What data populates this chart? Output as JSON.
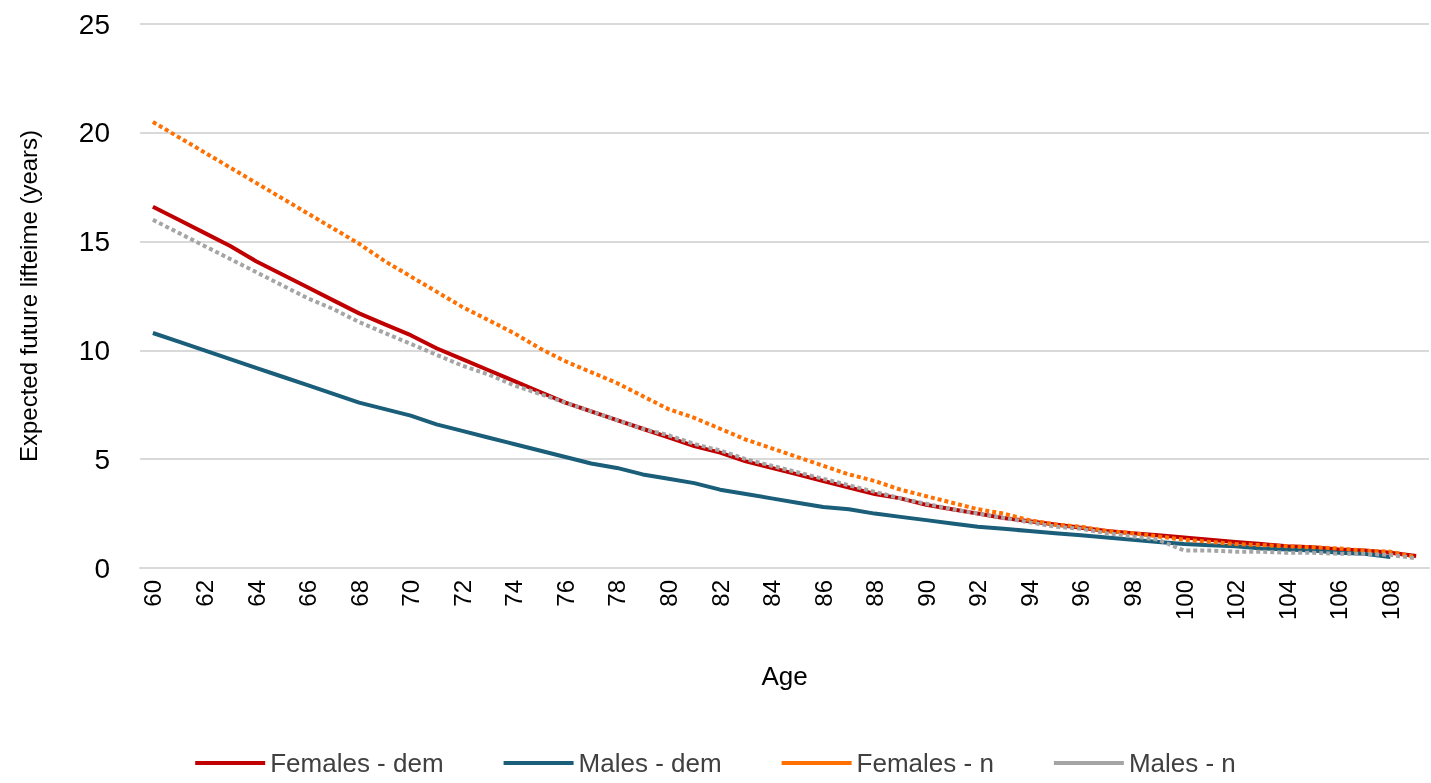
{
  "chart_data": {
    "type": "line",
    "xlabel": "Age",
    "ylabel": "Expected future lifteime (years)",
    "categories": [
      "60",
      null,
      "62",
      null,
      "64",
      null,
      "66",
      null,
      "68",
      null,
      "70",
      null,
      "72",
      null,
      "74",
      null,
      "76",
      null,
      "78",
      null,
      "80",
      null,
      "82",
      null,
      "84",
      null,
      "86",
      null,
      "88",
      null,
      "90",
      null,
      "92",
      null,
      "94",
      null,
      "96",
      null,
      "98",
      null,
      "100",
      null,
      "102",
      null,
      "104",
      null,
      "106",
      null,
      "108",
      null
    ],
    "series": [
      {
        "name": "Females - dem",
        "color": "#c00000",
        "line_style": "solid",
        "values": [
          16.6,
          16.0,
          15.4,
          14.8,
          14.1,
          13.5,
          12.9,
          12.3,
          11.7,
          11.2,
          10.7,
          10.1,
          9.6,
          9.1,
          8.6,
          8.1,
          7.6,
          7.2,
          6.8,
          6.4,
          6.0,
          5.6,
          5.3,
          4.9,
          4.6,
          4.3,
          4.0,
          3.7,
          3.4,
          3.2,
          2.9,
          2.7,
          2.5,
          2.3,
          2.15,
          2.0,
          1.85,
          1.7,
          1.6,
          1.5,
          1.4,
          1.3,
          1.2,
          1.1,
          1.0,
          0.95,
          0.85,
          0.8,
          0.7,
          0.55
        ]
      },
      {
        "name": "Males - dem",
        "color": "#1a5e7a",
        "line_style": "solid",
        "values": [
          10.8,
          10.4,
          10.0,
          9.6,
          9.2,
          8.8,
          8.4,
          8.0,
          7.6,
          7.3,
          7.0,
          6.6,
          6.3,
          6.0,
          5.7,
          5.4,
          5.1,
          4.8,
          4.6,
          4.3,
          4.1,
          3.9,
          3.6,
          3.4,
          3.2,
          3.0,
          2.8,
          2.7,
          2.5,
          2.35,
          2.2,
          2.05,
          1.9,
          1.8,
          1.7,
          1.6,
          1.5,
          1.4,
          1.3,
          1.2,
          1.1,
          1.05,
          1.0,
          0.9,
          0.85,
          0.8,
          0.7,
          0.65,
          0.5,
          null
        ]
      },
      {
        "name": "Females - n",
        "color": "#ff7000",
        "line_style": "dashed",
        "values": [
          20.5,
          19.8,
          19.1,
          18.4,
          17.7,
          17.0,
          16.3,
          15.6,
          14.9,
          14.1,
          13.4,
          12.7,
          12.0,
          11.4,
          10.8,
          10.1,
          9.5,
          9.0,
          8.5,
          7.9,
          7.3,
          6.9,
          6.4,
          5.9,
          5.5,
          5.1,
          4.7,
          4.3,
          4.0,
          3.6,
          3.3,
          3.0,
          2.7,
          2.5,
          2.2,
          2.0,
          1.9,
          1.7,
          1.6,
          1.45,
          1.3,
          1.2,
          1.1,
          1.05,
          1.0,
          0.95,
          0.9,
          0.8,
          0.75,
          0.5
        ]
      },
      {
        "name": "Males - n",
        "color": "#a5a5a5",
        "line_style": "dashed",
        "values": [
          16.0,
          15.4,
          14.8,
          14.2,
          13.6,
          13.0,
          12.4,
          11.9,
          11.3,
          10.8,
          10.3,
          9.8,
          9.3,
          8.9,
          8.4,
          8.0,
          7.6,
          7.2,
          6.8,
          6.4,
          6.1,
          5.7,
          5.4,
          5.0,
          4.7,
          4.4,
          4.1,
          3.8,
          3.5,
          3.2,
          2.95,
          2.7,
          2.5,
          2.3,
          2.1,
          1.9,
          1.8,
          1.6,
          1.45,
          1.3,
          0.8,
          0.8,
          0.75,
          0.75,
          0.7,
          0.7,
          0.65,
          0.65,
          0.6,
          0.45
        ]
      }
    ],
    "ylim": [
      0,
      25
    ],
    "yticks": [
      0,
      5,
      10,
      15,
      20,
      25
    ],
    "grid": "y",
    "legend": "bottom",
    "marker": "none"
  }
}
